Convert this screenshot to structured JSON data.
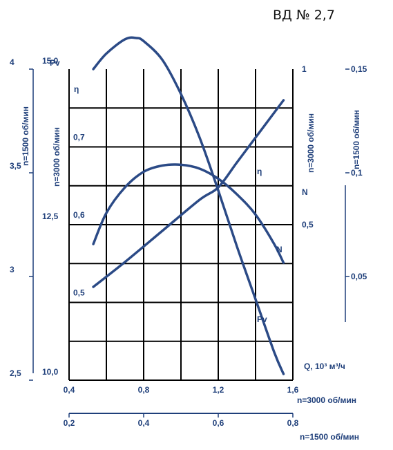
{
  "chart_data": {
    "type": "line",
    "title": "ВД № 2,7",
    "colors": {
      "curve": "#2b4a86",
      "grid": "#000000",
      "text": "#1f3f7a",
      "axis": "#1f3f7a"
    },
    "grid": true,
    "xlabel": "Q, 10³ м³/ч",
    "x_axes": [
      {
        "caption": "n=3000 об/мин",
        "range": [
          0.4,
          1.6
        ],
        "ticks": [
          "0,4",
          "0,8",
          "1,2",
          "1,6"
        ],
        "tick_values": [
          0.4,
          0.8,
          1.2,
          1.6
        ]
      },
      {
        "caption": "n=1500 об/мин",
        "range": [
          0.2,
          0.8
        ],
        "ticks": [
          "0,2",
          "0,4",
          "0,6",
          "0,8"
        ],
        "tick_values": [
          0.2,
          0.4,
          0.6,
          0.8
        ]
      }
    ],
    "y_axes": {
      "eta": {
        "label": "η",
        "range": [
          0.4,
          0.8
        ],
        "ticks": [
          "0,7",
          "0,6",
          "0,5"
        ],
        "tick_values": [
          0.7,
          0.6,
          0.5
        ]
      },
      "pv_3000": {
        "label": "Pv",
        "caption": "n=3000 об/мин",
        "range": [
          10.0,
          15.0
        ],
        "ticks": [
          "15,0",
          "12,5",
          "10,0"
        ],
        "tick_values": [
          15.0,
          12.5,
          10.0
        ]
      },
      "pv_1500": {
        "caption": "n=1500 об/мин",
        "range": [
          2.5,
          4.0
        ],
        "ticks": [
          "4",
          "3,5",
          "3",
          "2,5"
        ],
        "tick_values": [
          4.0,
          3.5,
          3.0,
          2.5
        ]
      },
      "n_3000": {
        "label": "N",
        "caption": "n=3000 об/мин",
        "range": [
          0.0,
          1.0
        ],
        "ticks": [
          "1",
          "0,5"
        ],
        "tick_values": [
          1.0,
          0.5
        ]
      },
      "n_1500": {
        "caption": "n=1500 об/мин",
        "range": [
          0.0,
          0.15
        ],
        "ticks": [
          "0,15",
          "0,1",
          "0,05"
        ],
        "tick_values": [
          0.15,
          0.1,
          0.05
        ]
      }
    },
    "series": [
      {
        "name": "η",
        "axis": "eta",
        "x": [
          0.53,
          0.6,
          0.7,
          0.8,
          0.9,
          1.0,
          1.1,
          1.2,
          1.3,
          1.4,
          1.5,
          1.55
        ],
        "values": [
          0.575,
          0.615,
          0.648,
          0.668,
          0.676,
          0.677,
          0.672,
          0.659,
          0.639,
          0.613,
          0.575,
          0.551
        ]
      },
      {
        "name": "Pv",
        "axis": "pv_3000",
        "x": [
          0.53,
          0.6,
          0.7,
          0.76,
          0.8,
          0.9,
          1.0,
          1.1,
          1.2,
          1.3,
          1.4,
          1.5,
          1.55
        ],
        "values": [
          15.0,
          15.25,
          15.48,
          15.5,
          15.45,
          15.15,
          14.6,
          13.9,
          13.05,
          12.15,
          11.3,
          10.45,
          10.1
        ]
      },
      {
        "name": "N",
        "axis": "n_3000",
        "x": [
          0.53,
          0.7,
          0.9,
          1.1,
          1.2,
          1.3,
          1.4,
          1.5,
          1.55
        ],
        "values": [
          0.3,
          0.38,
          0.48,
          0.58,
          0.62,
          0.7,
          0.78,
          0.86,
          0.9
        ]
      }
    ]
  }
}
